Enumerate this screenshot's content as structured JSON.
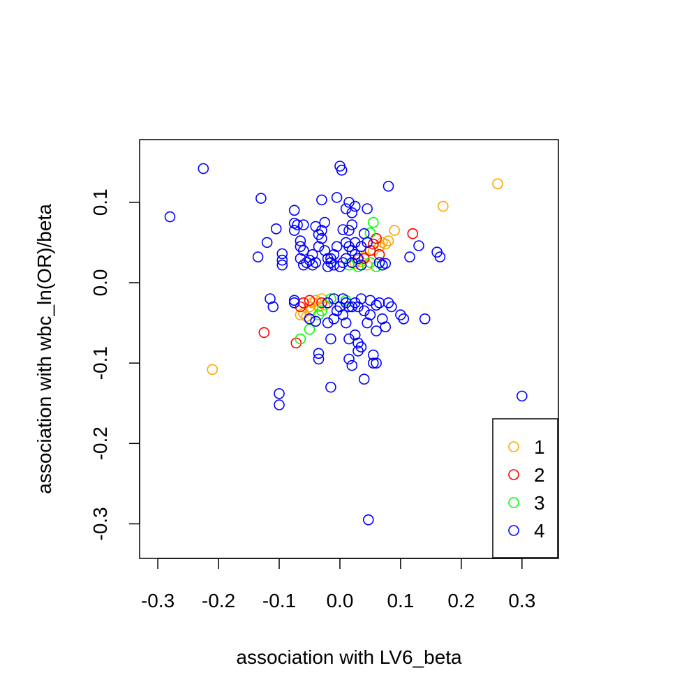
{
  "chart_data": {
    "type": "scatter",
    "xlabel": "association with LV6_beta",
    "ylabel": "association with wbc_ln(OR)/beta",
    "xlim": [
      -0.33,
      0.36
    ],
    "ylim": [
      -0.343,
      0.178
    ],
    "xticks": [
      {
        "value": -0.3,
        "label": "-0.3"
      },
      {
        "value": -0.2,
        "label": "-0.2"
      },
      {
        "value": -0.1,
        "label": "-0.1"
      },
      {
        "value": 0.0,
        "label": "0.0"
      },
      {
        "value": 0.1,
        "label": "0.1"
      },
      {
        "value": 0.2,
        "label": "0.2"
      },
      {
        "value": 0.3,
        "label": "0.3"
      }
    ],
    "yticks": [
      {
        "value": -0.3,
        "label": "-0.3"
      },
      {
        "value": -0.2,
        "label": "-0.2"
      },
      {
        "value": -0.1,
        "label": "-0.1"
      },
      {
        "value": 0.0,
        "label": "0.0"
      },
      {
        "value": 0.1,
        "label": "0.1"
      }
    ],
    "grid": false,
    "legend_position": "bottom-right",
    "marker": "open-circle",
    "series": [
      {
        "name": "1",
        "color": "#FFA500",
        "points": [
          [
            0.26,
            0.123
          ],
          [
            0.17,
            0.095
          ],
          [
            0.09,
            0.065
          ],
          [
            0.08,
            0.052
          ],
          [
            0.075,
            0.048
          ],
          [
            0.07,
            0.05
          ],
          [
            0.065,
            0.045
          ],
          [
            0.055,
            0.04
          ],
          [
            0.04,
            0.032
          ],
          [
            0.03,
            0.028
          ],
          [
            0.025,
            0.024
          ],
          [
            0.035,
            0.026
          ],
          [
            0.045,
            0.022
          ],
          [
            -0.21,
            -0.108
          ],
          [
            -0.055,
            -0.042
          ],
          [
            -0.06,
            -0.038
          ],
          [
            -0.065,
            -0.04
          ],
          [
            -0.05,
            -0.03
          ],
          [
            -0.045,
            -0.025
          ],
          [
            -0.04,
            -0.022
          ],
          [
            -0.03,
            -0.02
          ],
          [
            -0.025,
            -0.028
          ],
          [
            -0.035,
            -0.03
          ],
          [
            -0.048,
            -0.035
          ]
        ]
      },
      {
        "name": "2",
        "color": "#FF0000",
        "points": [
          [
            0.12,
            0.061
          ],
          [
            0.06,
            0.055
          ],
          [
            0.055,
            0.048
          ],
          [
            0.05,
            0.04
          ],
          [
            0.065,
            0.035
          ],
          [
            0.04,
            0.03
          ],
          [
            -0.125,
            -0.062
          ],
          [
            -0.072,
            -0.075
          ],
          [
            -0.065,
            -0.03
          ],
          [
            -0.06,
            -0.025
          ],
          [
            -0.05,
            -0.022
          ],
          [
            -0.03,
            -0.025
          ]
        ]
      },
      {
        "name": "3",
        "color": "#00FF00",
        "points": [
          [
            0.055,
            0.075
          ],
          [
            0.05,
            0.062
          ],
          [
            0.05,
            0.025
          ],
          [
            0.06,
            0.02
          ],
          [
            0.015,
            0.022
          ],
          [
            0.03,
            0.02
          ],
          [
            -0.05,
            -0.058
          ],
          [
            -0.065,
            -0.07
          ],
          [
            -0.035,
            -0.04
          ],
          [
            -0.015,
            -0.02
          ],
          [
            -0.03,
            -0.035
          ],
          [
            0.01,
            -0.022
          ]
        ]
      },
      {
        "name": "4",
        "color": "#0000FF",
        "points": [
          [
            -0.28,
            0.082
          ],
          [
            -0.225,
            0.142
          ],
          [
            -0.13,
            0.105
          ],
          [
            -0.12,
            0.05
          ],
          [
            -0.135,
            0.032
          ],
          [
            -0.105,
            0.067
          ],
          [
            -0.095,
            0.036
          ],
          [
            -0.095,
            0.028
          ],
          [
            -0.095,
            0.022
          ],
          [
            -0.075,
            0.09
          ],
          [
            -0.075,
            0.074
          ],
          [
            -0.07,
            0.072
          ],
          [
            -0.075,
            0.065
          ],
          [
            -0.06,
            0.072
          ],
          [
            -0.065,
            0.052
          ],
          [
            -0.065,
            0.045
          ],
          [
            -0.06,
            0.04
          ],
          [
            -0.065,
            0.03
          ],
          [
            -0.06,
            0.022
          ],
          [
            -0.055,
            0.025
          ],
          [
            -0.05,
            0.028
          ],
          [
            -0.045,
            0.035
          ],
          [
            -0.04,
            0.07
          ],
          [
            -0.035,
            0.06
          ],
          [
            -0.03,
            0.065
          ],
          [
            -0.025,
            0.075
          ],
          [
            -0.03,
            0.055
          ],
          [
            -0.03,
            0.103
          ],
          [
            -0.035,
            0.045
          ],
          [
            -0.025,
            0.04
          ],
          [
            -0.02,
            0.03
          ],
          [
            -0.015,
            0.025
          ],
          [
            -0.01,
            0.035
          ],
          [
            -0.005,
            0.045
          ],
          [
            0.0,
            0.145
          ],
          [
            0.003,
            0.14
          ],
          [
            -0.005,
            0.106
          ],
          [
            0.01,
            0.092
          ],
          [
            0.015,
            0.1
          ],
          [
            0.02,
            0.087
          ],
          [
            0.025,
            0.095
          ],
          [
            0.02,
            0.072
          ],
          [
            0.015,
            0.065
          ],
          [
            0.005,
            0.066
          ],
          [
            0.01,
            0.05
          ],
          [
            0.015,
            0.045
          ],
          [
            0.02,
            0.04
          ],
          [
            0.025,
            0.035
          ],
          [
            0.03,
            0.03
          ],
          [
            0.035,
            0.022
          ],
          [
            0.04,
            0.061
          ],
          [
            0.045,
            0.092
          ],
          [
            0.08,
            0.12
          ],
          [
            0.045,
            0.05
          ],
          [
            0.035,
            0.045
          ],
          [
            0.025,
            0.05
          ],
          [
            0.005,
            0.025
          ],
          [
            0.0,
            0.02
          ],
          [
            -0.01,
            0.022
          ],
          [
            -0.015,
            0.03
          ],
          [
            -0.02,
            0.02
          ],
          [
            0.07,
            0.022
          ],
          [
            0.075,
            0.024
          ],
          [
            0.13,
            0.046
          ],
          [
            0.115,
            0.032
          ],
          [
            0.16,
            0.038
          ],
          [
            0.165,
            0.032
          ],
          [
            -0.045,
            0.022
          ],
          [
            -0.04,
            0.025
          ],
          [
            0.01,
            0.03
          ],
          [
            0.02,
            0.025
          ],
          [
            0.065,
            0.025
          ],
          [
            -0.115,
            -0.02
          ],
          [
            -0.11,
            -0.03
          ],
          [
            -0.075,
            -0.022
          ],
          [
            -0.075,
            -0.025
          ],
          [
            -0.05,
            -0.045
          ],
          [
            -0.04,
            -0.048
          ],
          [
            -0.035,
            -0.095
          ],
          [
            -0.035,
            -0.088
          ],
          [
            -0.02,
            -0.05
          ],
          [
            -0.015,
            -0.07
          ],
          [
            -0.015,
            -0.13
          ],
          [
            -0.01,
            -0.045
          ],
          [
            -0.005,
            -0.035
          ],
          [
            0.0,
            -0.03
          ],
          [
            0.005,
            -0.04
          ],
          [
            0.01,
            -0.025
          ],
          [
            0.015,
            -0.07
          ],
          [
            0.015,
            -0.095
          ],
          [
            0.02,
            -0.103
          ],
          [
            0.025,
            -0.065
          ],
          [
            0.03,
            -0.075
          ],
          [
            0.03,
            -0.085
          ],
          [
            0.035,
            -0.08
          ],
          [
            0.04,
            -0.12
          ],
          [
            0.045,
            -0.05
          ],
          [
            0.05,
            -0.04
          ],
          [
            0.055,
            -0.09
          ],
          [
            0.055,
            -0.1
          ],
          [
            0.06,
            -0.1
          ],
          [
            0.06,
            -0.06
          ],
          [
            0.07,
            -0.045
          ],
          [
            0.075,
            -0.055
          ],
          [
            0.08,
            -0.025
          ],
          [
            0.085,
            -0.03
          ],
          [
            0.1,
            -0.04
          ],
          [
            0.105,
            -0.045
          ],
          [
            0.14,
            -0.045
          ],
          [
            0.3,
            -0.141
          ],
          [
            -0.1,
            -0.138
          ],
          [
            -0.1,
            -0.152
          ],
          [
            0.047,
            -0.295
          ],
          [
            0.02,
            -0.03
          ],
          [
            0.025,
            -0.025
          ],
          [
            0.03,
            -0.03
          ],
          [
            0.035,
            -0.02
          ],
          [
            0.04,
            -0.035
          ],
          [
            -0.01,
            -0.02
          ],
          [
            -0.02,
            -0.025
          ],
          [
            0.01,
            -0.05
          ],
          [
            0.05,
            -0.022
          ],
          [
            0.06,
            -0.028
          ],
          [
            0.065,
            -0.025
          ],
          [
            0.005,
            -0.02
          ],
          [
            0.015,
            -0.03
          ]
        ]
      }
    ]
  }
}
